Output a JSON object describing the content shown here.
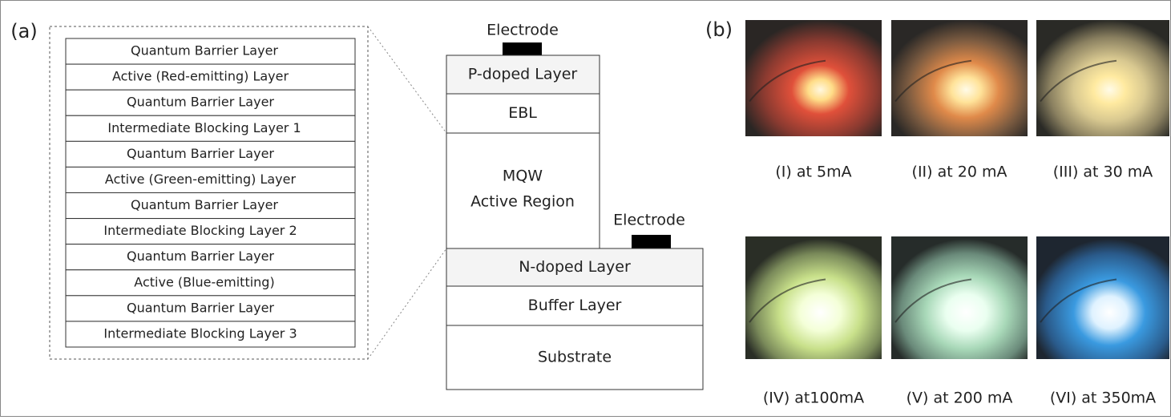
{
  "panel_a": {
    "label": "(a)",
    "zoom_layers": [
      "Quantum Barrier Layer",
      "Active (Red-emitting) Layer",
      "Quantum Barrier Layer",
      "Intermediate Blocking Layer 1",
      "Quantum Barrier Layer",
      "Active (Green-emitting) Layer",
      "Quantum Barrier Layer",
      "Intermediate Blocking Layer 2",
      "Quantum Barrier Layer",
      "Active (Blue-emitting)",
      "Quantum Barrier Layer",
      "Intermediate Blocking Layer 3"
    ],
    "device": {
      "top_electrode": "Electrode",
      "side_electrode": "Electrode",
      "upper_layers": [
        "P-doped Layer",
        "EBL",
        [
          "MQW",
          "Active Region"
        ]
      ],
      "lower_layers": [
        "N-doped Layer",
        "Buffer Layer",
        "Substrate"
      ]
    }
  },
  "panel_b": {
    "label": "(b)",
    "captions": [
      "(I)  at 5mA",
      "(II) at 20 mA",
      "(III) at 30 mA",
      "(IV) at100mA",
      "(V)  at 200 mA",
      "(VI) at 350mA"
    ]
  }
}
